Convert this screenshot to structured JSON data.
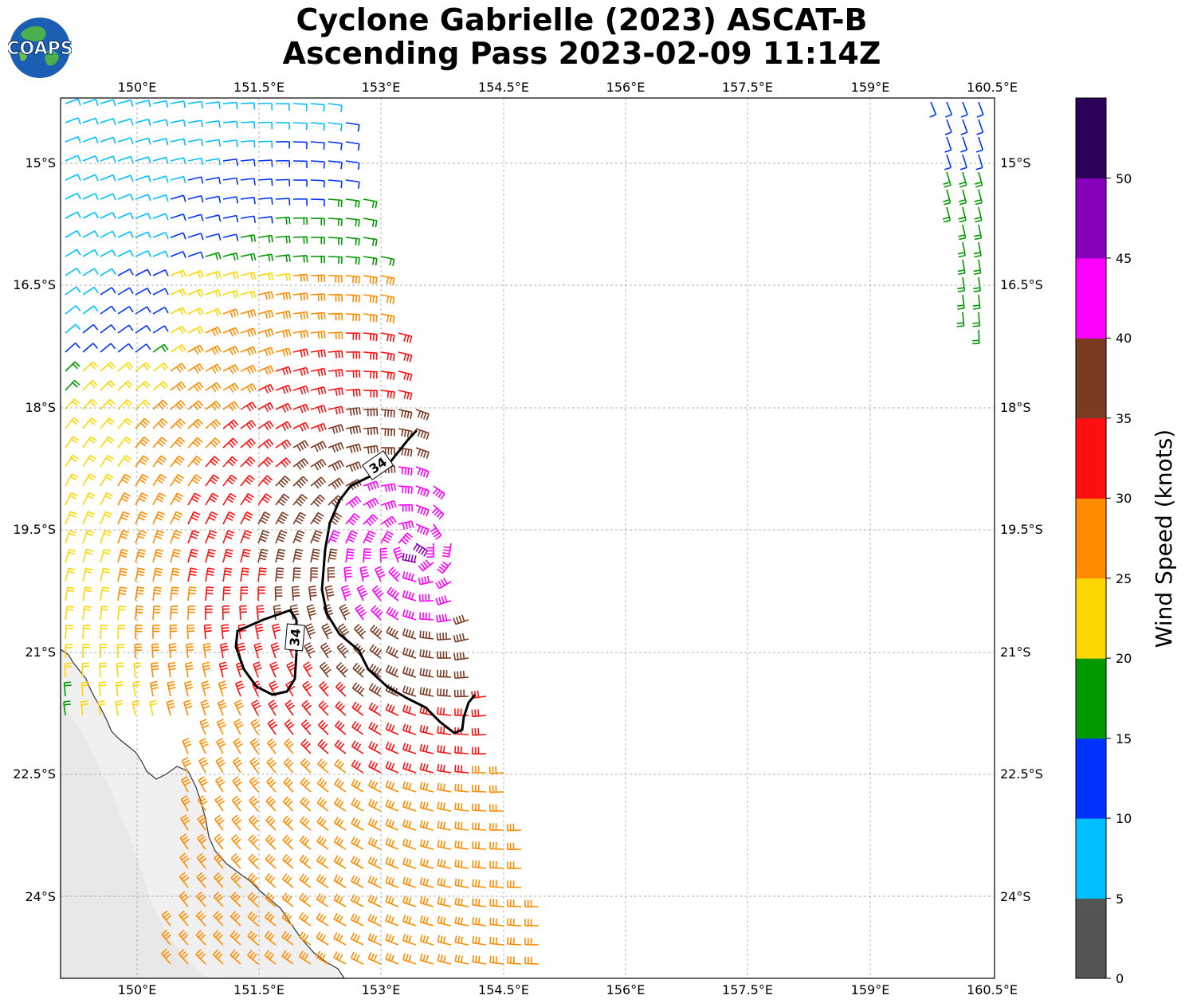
{
  "title": {
    "line1": "Cyclone Gabrielle (2023) ASCAT-B",
    "line2": "Ascending Pass 2023-02-09 11:14Z"
  },
  "logo": {
    "text": "COAPS"
  },
  "map": {
    "lon_ticks": [
      "150°E",
      "151.5°E",
      "153°E",
      "154.5°E",
      "156°E",
      "157.5°E",
      "159°E",
      "160.5°E"
    ],
    "lat_ticks": [
      "15°S",
      "16.5°S",
      "18°S",
      "19.5°S",
      "21°S",
      "22.5°S",
      "24°S"
    ],
    "contour_label": "34",
    "gridlines": true
  },
  "colorbar": {
    "label": "Wind Speed (knots)",
    "ticks": [
      "0",
      "5",
      "10",
      "15",
      "20",
      "25",
      "30",
      "35",
      "40",
      "45",
      "50"
    ],
    "colors": [
      "#555555",
      "#00bfff",
      "#0033ff",
      "#009900",
      "#ffd700",
      "#ff8c00",
      "#ff1010",
      "#7b3a22",
      "#ff00ff",
      "#8800bb",
      "#2a0058"
    ]
  }
}
